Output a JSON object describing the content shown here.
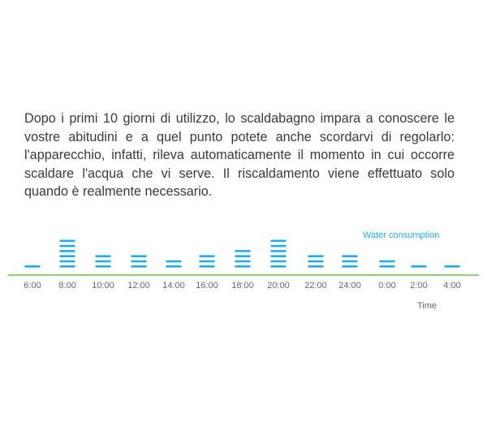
{
  "paragraph": "Dopo i primi 10 giorni di utilizzo, lo scaldabagno impara a conoscere le vostre abitudini e a quel punto potete anche scordarvi di regolarlo: l'apparecchio, infatti, rileva automaticamente il momento in cui occorre scaldare l'acqua che vi serve. Il riscaldamento viene effettuato solo quando è realmente necessario.",
  "chart_data": {
    "type": "bar",
    "categories": [
      "6:00",
      "8:00",
      "10:00",
      "12:00",
      "14:00",
      "16:00",
      "18:00",
      "20:00",
      "22:00",
      "24:00",
      "0:00",
      "2:00",
      "4:00"
    ],
    "series": [
      {
        "name": "Water consumption",
        "values": [
          1,
          6,
          3,
          3,
          2,
          3,
          4,
          6,
          3,
          3,
          2,
          1,
          1
        ]
      }
    ],
    "xlabel": "Time",
    "ylabel": "",
    "legend": "top-right",
    "grid": false,
    "colors": {
      "bars": "#1eaee9",
      "axis": "#6cc04a"
    }
  }
}
